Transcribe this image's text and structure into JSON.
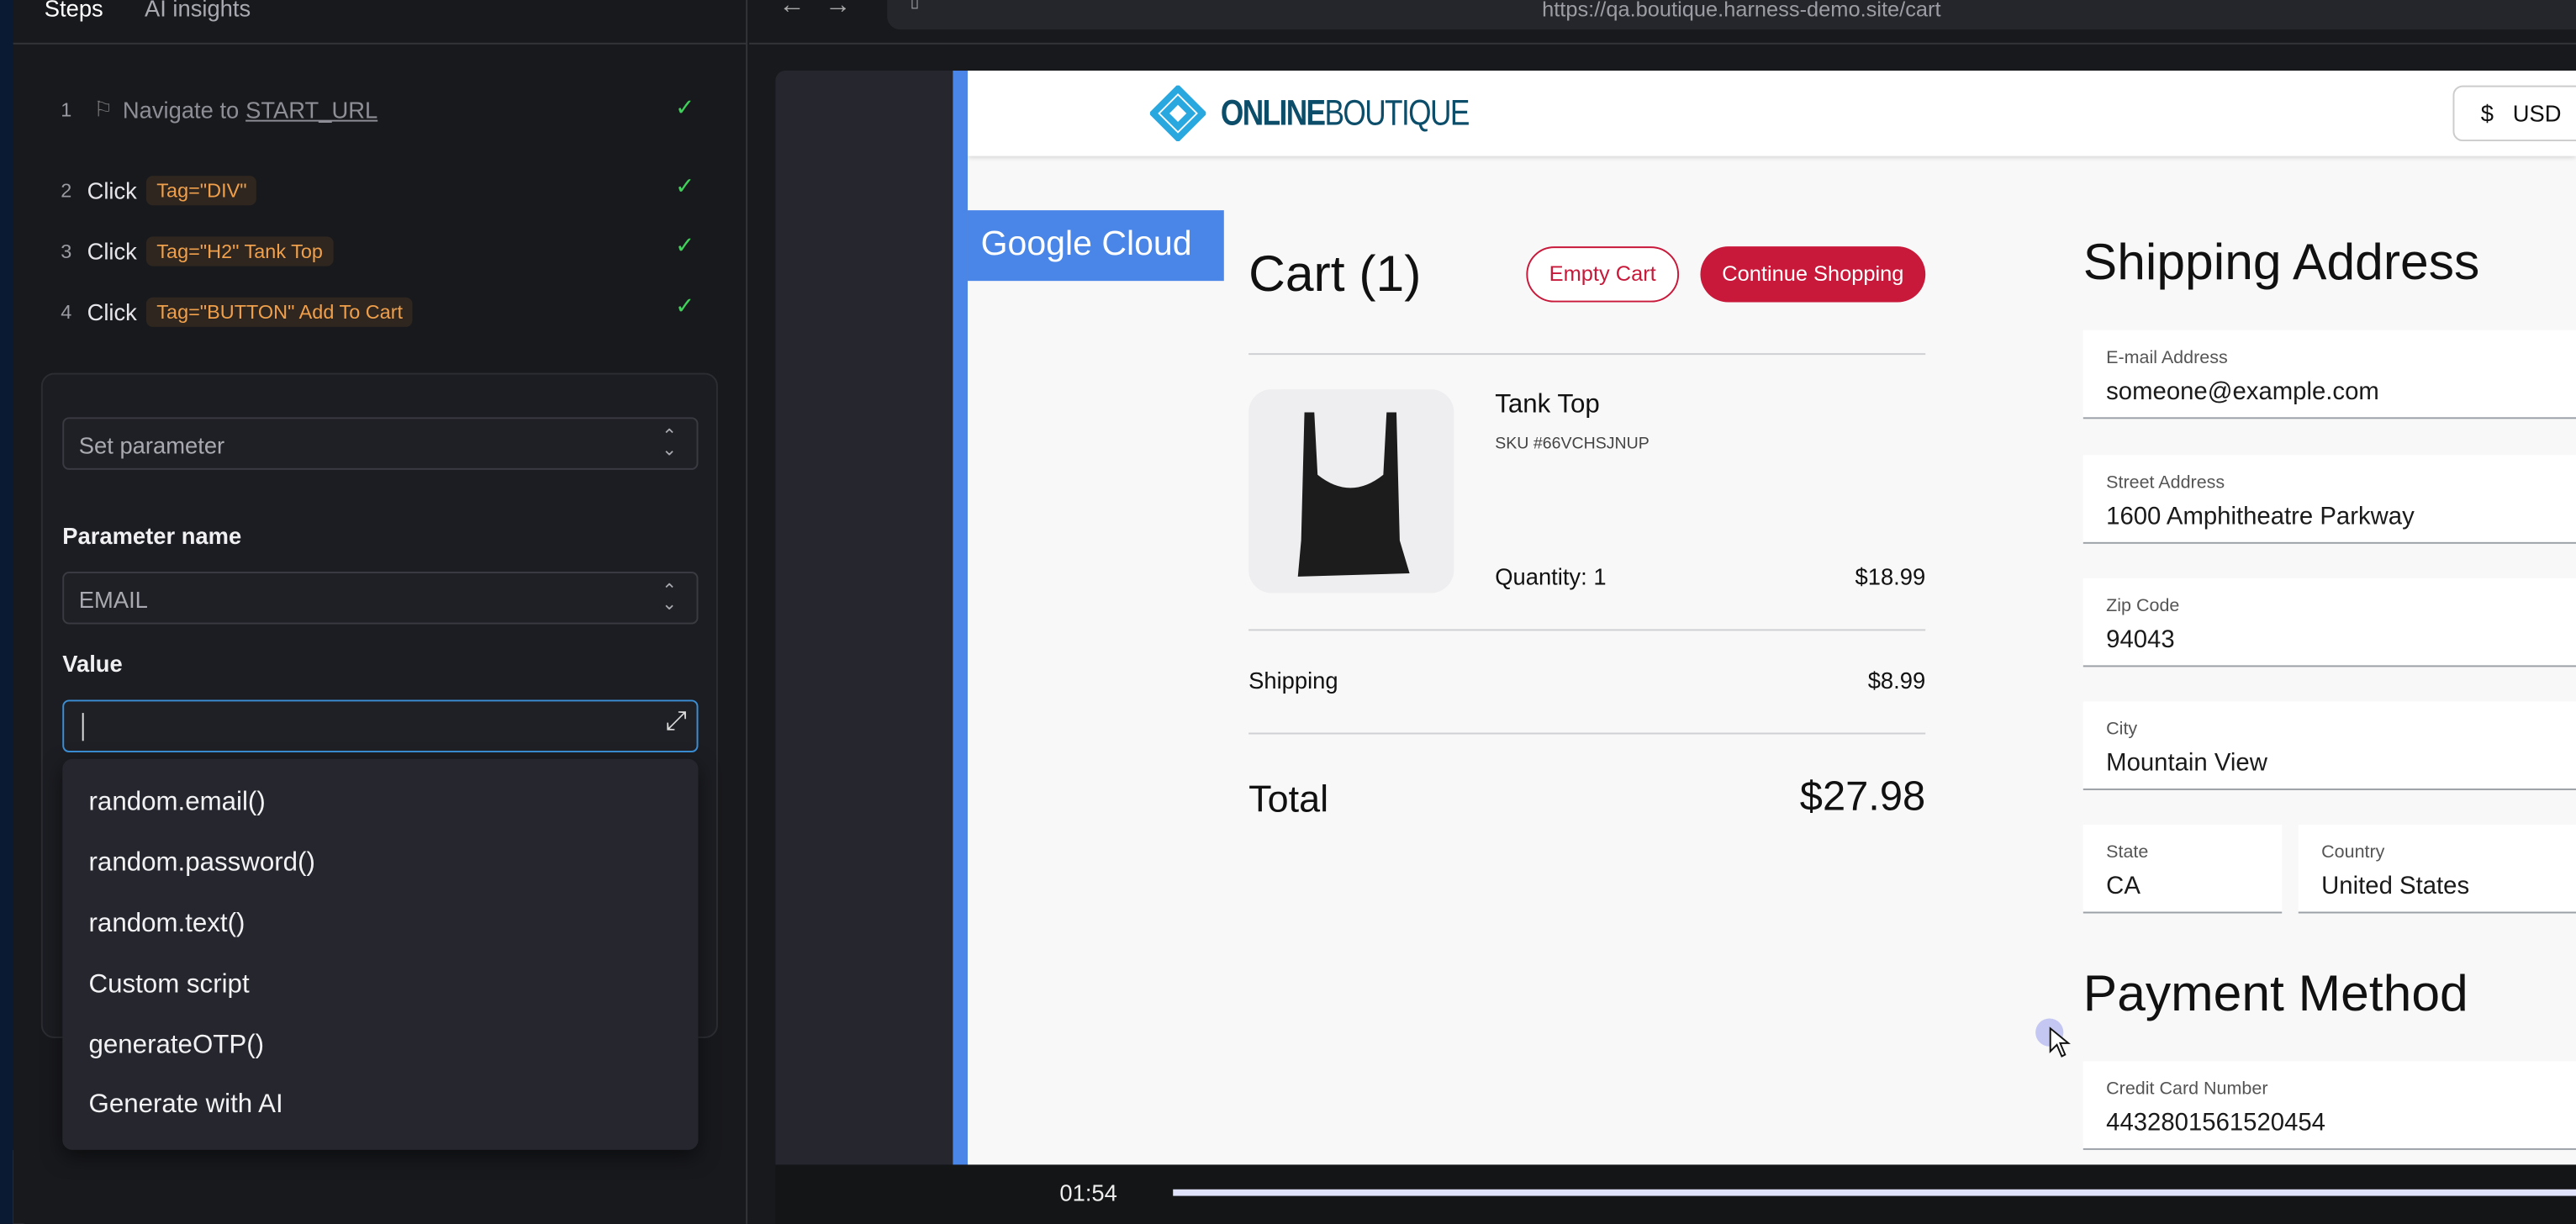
{
  "panel": {
    "tabs": [
      "Steps",
      "AI insights"
    ],
    "steps": [
      {
        "num": "1",
        "action": "Navigate to",
        "target": "START_URL"
      },
      {
        "num": "2",
        "action": "Click",
        "tag": "Tag=\"DIV\""
      },
      {
        "num": "3",
        "action": "Click",
        "tag": "Tag=\"H2\" Tank Top"
      },
      {
        "num": "4",
        "action": "Click",
        "tag": "Tag=\"BUTTON\" Add To Cart"
      }
    ],
    "step_status": "success",
    "check_color": "#3fd15a",
    "action_select": "Set parameter",
    "param_label": "Parameter name",
    "param_value": "EMAIL",
    "value_label": "Value",
    "value_input": "",
    "suggestions": [
      "random.email()",
      "random.password()",
      "random.text()",
      "Custom script",
      "generateOTP()",
      "Generate with AI"
    ]
  },
  "browser": {
    "url": "https://qa.boutique.harness-demo.site/cart"
  },
  "site": {
    "logo": "ONLINEBOUTIQUE",
    "currency": "USD",
    "currency_symbol": "$",
    "banner": "Google Cloud",
    "cart_title": "Cart (1)",
    "empty_cart": "Empty Cart",
    "continue": "Continue Shopping",
    "item": {
      "name": "Tank Top",
      "sku": "SKU #66VCHSJNUP",
      "quantity": "Quantity: 1",
      "price": "$18.99"
    },
    "shipping_label": "Shipping",
    "shipping_price": "$8.99",
    "total_label": "Total",
    "total": "$27.98",
    "shipping_title": "Shipping Address",
    "fields": {
      "email": {
        "label": "E-mail Address",
        "value": "someone@example.com"
      },
      "street": {
        "label": "Street Address",
        "value": "1600 Amphitheatre Parkway"
      },
      "zip": {
        "label": "Zip Code",
        "value": "94043"
      },
      "city": {
        "label": "City",
        "value": "Mountain View"
      },
      "state": {
        "label": "State",
        "value": "CA"
      },
      "country": {
        "label": "Country",
        "value": "United States"
      },
      "card": {
        "label": "Credit Card Number",
        "value": "4432801561520454"
      }
    },
    "payment_title": "Payment Method",
    "accent": "#c8193a",
    "brand_blue": "#4a86e8"
  },
  "player": {
    "time": "01:54"
  }
}
